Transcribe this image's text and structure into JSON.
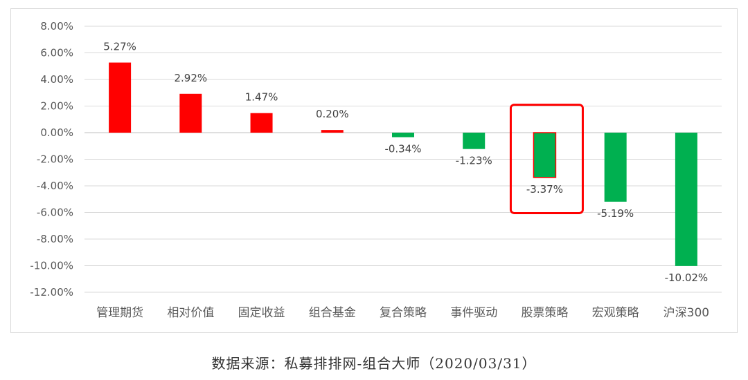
{
  "chart_data": {
    "type": "bar",
    "categories": [
      "管理期货",
      "相对价值",
      "固定收益",
      "组合基金",
      "复合策略",
      "事件驱动",
      "股票策略",
      "宏观策略",
      "沪深300"
    ],
    "values": [
      5.27,
      2.92,
      1.47,
      0.2,
      -0.34,
      -1.23,
      -3.37,
      -5.19,
      -10.02
    ],
    "data_labels": [
      "5.27%",
      "2.92%",
      "1.47%",
      "0.20%",
      "-0.34%",
      "-1.23%",
      "-3.37%",
      "-5.19%",
      "-10.02%"
    ],
    "y_ticks": [
      8,
      6,
      4,
      2,
      0,
      -2,
      -4,
      -6,
      -8,
      -10,
      -12
    ],
    "y_tick_labels": [
      "8.00%",
      "6.00%",
      "4.00%",
      "2.00%",
      "0.00%",
      "-2.00%",
      "-4.00%",
      "-6.00%",
      "-8.00%",
      "-10.00%",
      "-12.00%"
    ],
    "ylim": [
      -12,
      8
    ],
    "grid": true,
    "colors": {
      "positive": "#ff0000",
      "negative": "#00b050",
      "highlight_box": "#ff0000",
      "highlight_bar_border": "#ff0000"
    },
    "highlight_category": "股票策略",
    "title": "",
    "xlabel": "",
    "ylabel": ""
  },
  "source_note": "数据来源：私募排排网-组合大师（2020/03/31）"
}
